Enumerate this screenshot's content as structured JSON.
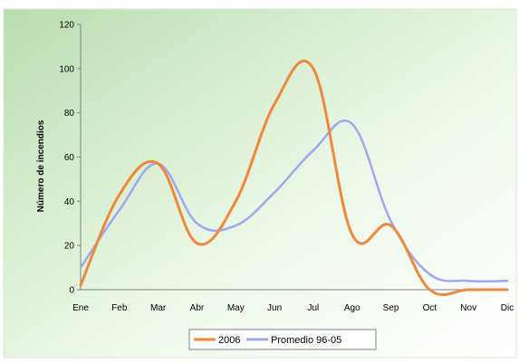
{
  "chart_data": {
    "type": "line",
    "title": "",
    "xlabel": "",
    "ylabel": "Número de incendios",
    "categories": [
      "Ene",
      "Feb",
      "Mar",
      "Abr",
      "May",
      "Jun",
      "Jul",
      "Ago",
      "Sep",
      "Oct",
      "Nov",
      "Dic"
    ],
    "ylim": [
      0,
      120
    ],
    "yticks": [
      0,
      20,
      40,
      60,
      80,
      100,
      120
    ],
    "grid": false,
    "legend_position": "bottom",
    "series": [
      {
        "name": "2006",
        "color": "#f0883a",
        "values": [
          2,
          43,
          57,
          21,
          40,
          84,
          100,
          25,
          29,
          0,
          0,
          0
        ]
      },
      {
        "name": "Promedio 96-05",
        "color": "#9ea8ee",
        "values": [
          10,
          36,
          57,
          30,
          29,
          44,
          63,
          75,
          31,
          7,
          4,
          4
        ]
      }
    ]
  }
}
